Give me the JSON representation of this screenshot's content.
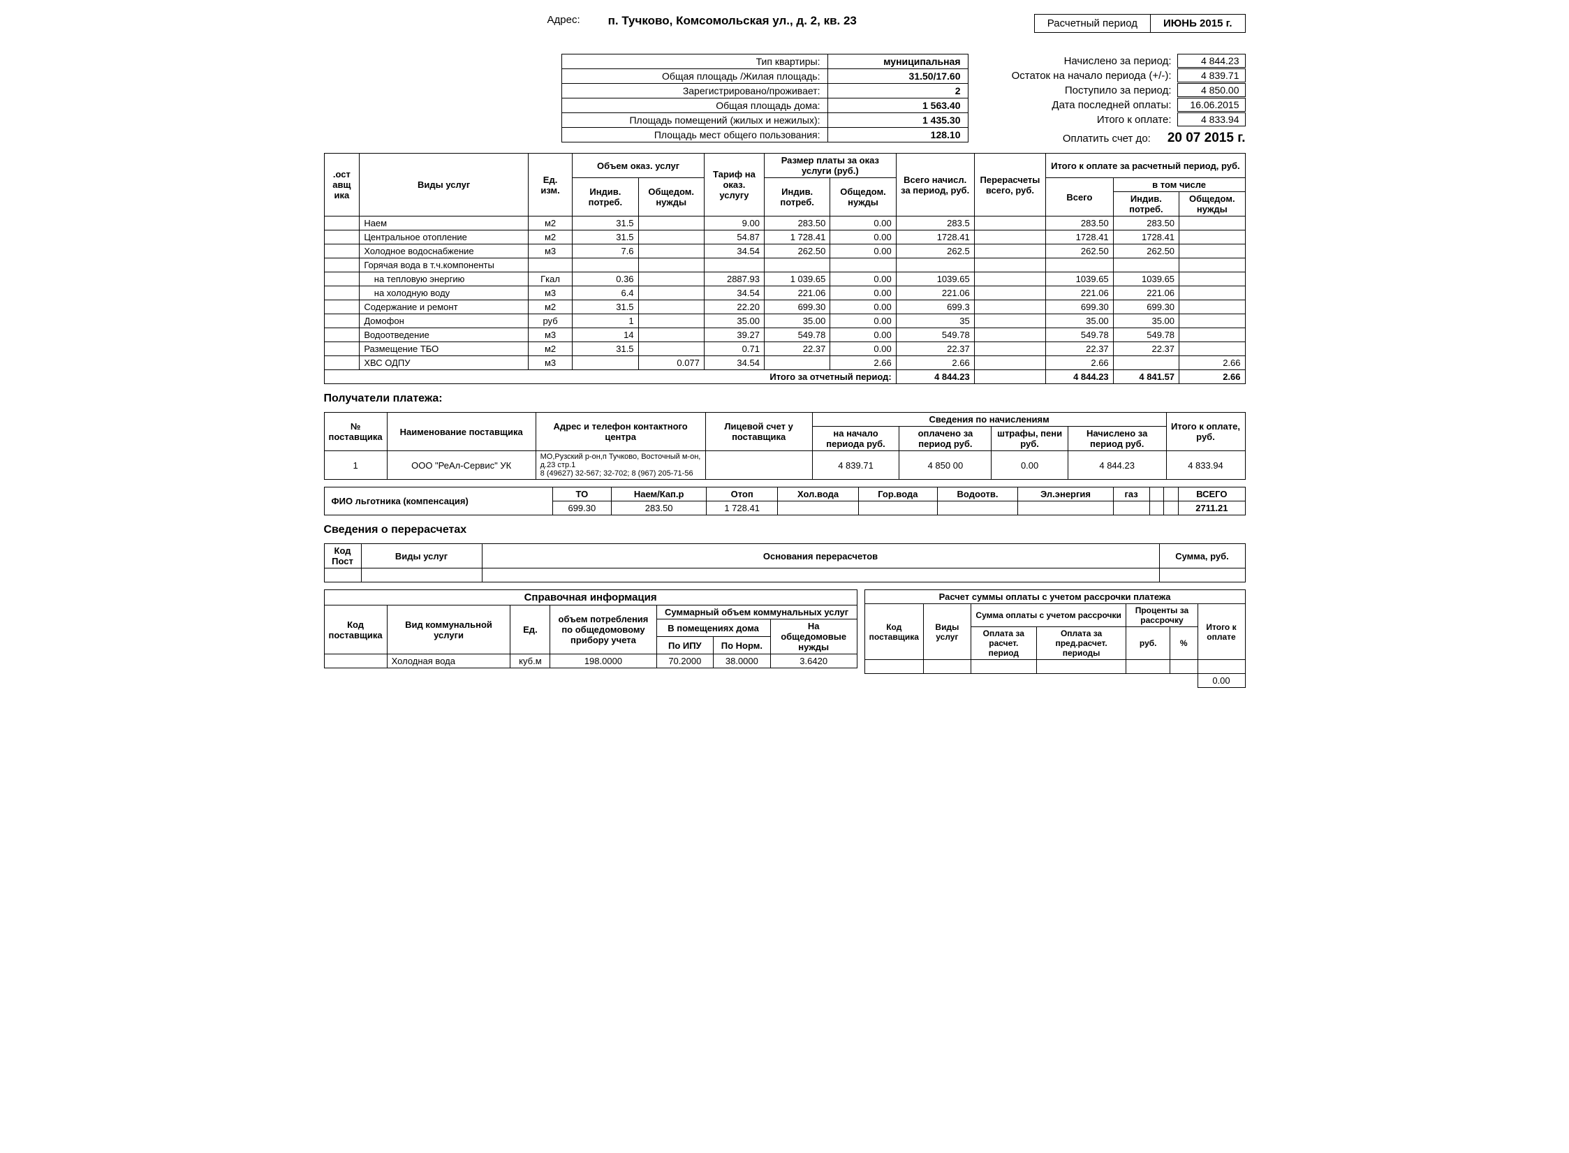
{
  "header": {
    "address_label": "Адрес:",
    "address_value": "п. Тучково, Комсомольская ул., д. 2, кв. 23",
    "period_label": "Расчетный период",
    "period_value": "ИЮНЬ 2015 г."
  },
  "apartment_info": {
    "rows": [
      {
        "label": "Тип квартиры:",
        "value": "муниципальная"
      },
      {
        "label": "Общая площадь /Жилая площадь:",
        "value": "31.50/17.60"
      },
      {
        "label": "Зарегистрировано/проживает:",
        "value": "2"
      },
      {
        "label": "Общая площадь дома:",
        "value": "1 563.40"
      },
      {
        "label": "Площадь помещений (жилых и нежилых):",
        "value": "1 435.30"
      },
      {
        "label": "Площадь мест общего пользования:",
        "value": "128.10"
      }
    ]
  },
  "summary": {
    "rows": [
      {
        "label": "Начислено за период:",
        "value": "4 844.23"
      },
      {
        "label": "Остаток на начало периода (+/-):",
        "value": "4 839.71"
      },
      {
        "label": "Поступило за период:",
        "value": "4 850.00"
      },
      {
        "label": "Дата последней оплаты:",
        "value": "16.06.2015"
      },
      {
        "label": "Итого к оплате:",
        "value": "4 833.94"
      }
    ],
    "due_label": "Оплатить счет до:",
    "due_value": "20 07 2015 г."
  },
  "main_table": {
    "headers": {
      "supplier_code": "Код поставщика",
      "vidy": "Виды услуг",
      "unit": "Ед. изм.",
      "volume": "Объем оказ. услуг",
      "indiv": "Индив. потреб.",
      "obsh": "Общедом. нужды",
      "tarif": "Тариф на оказ. услугу",
      "razmer": "Размер платы за оказ услуги (руб.)",
      "vsego_nach": "Всего начисл. за период, руб.",
      "recalc": "Перерасчеты всего, руб.",
      "itogo": "Итого к оплате за расчетный период, руб.",
      "vsego": "Всего",
      "vtom": "в том числе"
    },
    "rows": [
      {
        "name": "Наем",
        "unit": "м2",
        "indv": "31.5",
        "obv": "",
        "tarif": "9.00",
        "indp": "283.50",
        "obp": "0.00",
        "tot": "283.5",
        "rec": "",
        "it": "283.50",
        "iti": "283.50",
        "ito": ""
      },
      {
        "name": "Центральное отопление",
        "unit": "м2",
        "indv": "31.5",
        "obv": "",
        "tarif": "54.87",
        "indp": "1 728.41",
        "obp": "0.00",
        "tot": "1728.41",
        "rec": "",
        "it": "1728.41",
        "iti": "1728.41",
        "ito": ""
      },
      {
        "name": "Холодное водоснабжение",
        "unit": "м3",
        "indv": "7.6",
        "obv": "",
        "tarif": "34.54",
        "indp": "262.50",
        "obp": "0.00",
        "tot": "262.5",
        "rec": "",
        "it": "262.50",
        "iti": "262.50",
        "ito": ""
      },
      {
        "name": "Горячая вода в т.ч.компоненты",
        "unit": "",
        "indv": "",
        "obv": "",
        "tarif": "",
        "indp": "",
        "obp": "",
        "tot": "",
        "rec": "",
        "it": "",
        "iti": "",
        "ito": ""
      },
      {
        "name": "    на тепловую энергию",
        "unit": "Гкал",
        "indv": "0.36",
        "obv": "",
        "tarif": "2887.93",
        "indp": "1 039.65",
        "obp": "0.00",
        "tot": "1039.65",
        "rec": "",
        "it": "1039.65",
        "iti": "1039.65",
        "ito": ""
      },
      {
        "name": "    на холодную воду",
        "unit": "м3",
        "indv": "6.4",
        "obv": "",
        "tarif": "34.54",
        "indp": "221.06",
        "obp": "0.00",
        "tot": "221.06",
        "rec": "",
        "it": "221.06",
        "iti": "221.06",
        "ito": ""
      },
      {
        "name": "Содержание и ремонт",
        "unit": "м2",
        "indv": "31.5",
        "obv": "",
        "tarif": "22.20",
        "indp": "699.30",
        "obp": "0.00",
        "tot": "699.3",
        "rec": "",
        "it": "699.30",
        "iti": "699.30",
        "ito": ""
      },
      {
        "name": "Домофон",
        "unit": "руб",
        "indv": "1",
        "obv": "",
        "tarif": "35.00",
        "indp": "35.00",
        "obp": "0.00",
        "tot": "35",
        "rec": "",
        "it": "35.00",
        "iti": "35.00",
        "ito": ""
      },
      {
        "name": "Водоотведение",
        "unit": "м3",
        "indv": "14",
        "obv": "",
        "tarif": "39.27",
        "indp": "549.78",
        "obp": "0.00",
        "tot": "549.78",
        "rec": "",
        "it": "549.78",
        "iti": "549.78",
        "ito": ""
      },
      {
        "name": "Размещение ТБО",
        "unit": "м2",
        "indv": "31.5",
        "obv": "",
        "tarif": "0.71",
        "indp": "22.37",
        "obp": "0.00",
        "tot": "22.37",
        "rec": "",
        "it": "22.37",
        "iti": "22.37",
        "ito": ""
      },
      {
        "name": "ХВС ОДПУ",
        "unit": "м3",
        "indv": "",
        "obv": "0.077",
        "tarif": "34.54",
        "indp": "",
        "obp": "2.66",
        "tot": "2.66",
        "rec": "",
        "it": "2.66",
        "iti": "",
        "ito": "2.66"
      }
    ],
    "total": {
      "label": "Итого за отчетный период:",
      "tot": "4 844.23",
      "rec": "",
      "it": "4 844.23",
      "iti": "4 841.57",
      "ito": "2.66"
    }
  },
  "recipients": {
    "title": "Получатели платежа:",
    "headers": {
      "n": "№ поставщика",
      "name": "Наименование поставщика",
      "addr": "Адрес и телефон контактного центра",
      "acct": "Лицевой счет у поставщика",
      "sved": "Сведения по начислениям",
      "start": "на начало периода руб.",
      "paid": "оплачено за период руб.",
      "fines": "штрафы, пени руб.",
      "charged": "Начислено за период руб.",
      "topay": "Итого к оплате, руб."
    },
    "row": {
      "n": "1",
      "name": "ООО \"РеАл-Сервис\" УК",
      "addr": "МО,Рузский р-он,п Тучково, Восточный м-он, д.23 стр.1\n8 (49627) 32-567; 32-702; 8 (967) 205-71-56",
      "acct": "",
      "start": "4 839.71",
      "paid": "4 850 00",
      "fines": "0.00",
      "charged": "4 844.23",
      "topay": "4 833.94"
    }
  },
  "compensation": {
    "label": "ФИО льготника (компенсация)",
    "headers": [
      "ТО",
      "Наем/Кап.р",
      "Отоп",
      "Хол.вода",
      "Гор.вода",
      "Водоотв.",
      "Эл.энергия",
      "газ",
      "",
      "",
      "ВСЕГО"
    ],
    "values": [
      "699.30",
      "283.50",
      "1 728.41",
      "",
      "",
      "",
      "",
      "",
      "",
      "",
      "2711.21"
    ]
  },
  "recalc": {
    "title": "Сведения о перерасчетах",
    "headers": {
      "code": "Код Пост",
      "vidy": "Виды услуг",
      "basis": "Основания перерасчетов",
      "sum": "Сумма, руб."
    }
  },
  "reference": {
    "title": "Справочная информация",
    "headers": {
      "code": "Код поставщика",
      "vid": "Вид коммунальной услуги",
      "unit": "Ед.",
      "vol": "объем потребления по общедомовому прибору учета",
      "sum": "Суммарный объем коммунальных услуг",
      "inhouse": "В помещениях дома",
      "ipu": "По ИПУ",
      "norm": "По Норм.",
      "common": "На общедомовые нужды"
    },
    "row": {
      "code": "",
      "vid": "Холодная вода",
      "unit": "куб.м",
      "vol": "198.0000",
      "ipu": "70.2000",
      "norm": "38.0000",
      "common": "3.6420"
    }
  },
  "installment": {
    "title": "Расчет суммы оплаты с учетом рассрочки платежа",
    "headers": {
      "code": "Код поставщика",
      "vidy": "Виды услуг",
      "sum": "Сумма оплаты с учетом рассрочки",
      "interest": "Проценты за рассрочку",
      "topay": "Итого к оплате",
      "p1": "Оплата за расчет. период",
      "p2": "Оплата за пред.расчет. периоды",
      "rub": "руб.",
      "pct": "%"
    },
    "total": "0.00"
  }
}
